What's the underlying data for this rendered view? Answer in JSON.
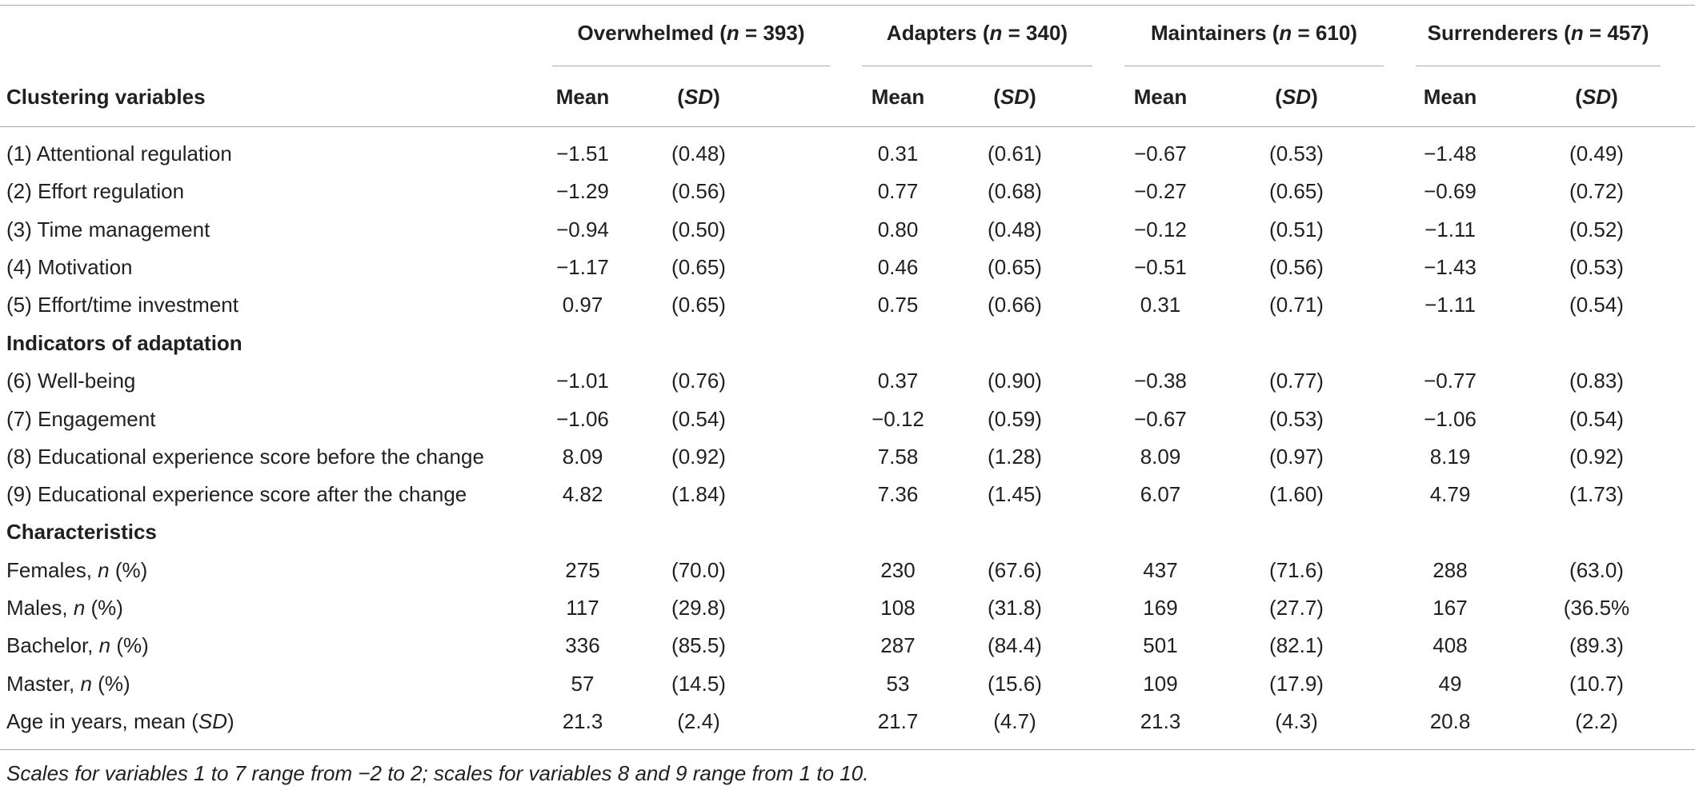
{
  "groups": [
    {
      "name": "Overwhelmed",
      "n_label": "(n = 393)",
      "n": "393"
    },
    {
      "name": "Adapters",
      "n_label": "(n = 340)",
      "n": "340"
    },
    {
      "name": "Maintainers",
      "n_label": "(n = 610)",
      "n": "610"
    },
    {
      "name": "Surrenderers",
      "n_label": "(n = 457)",
      "n": "457"
    }
  ],
  "header": {
    "row_label": "Clustering variables",
    "mean": "Mean",
    "sd": "(SD)"
  },
  "sections": {
    "indicators": "Indicators of adaptation",
    "characteristics": "Characteristics"
  },
  "rows": [
    {
      "label": "(1) Attentional regulation",
      "vals": [
        "−1.51",
        "(0.48)",
        "0.31",
        "(0.61)",
        "−0.67",
        "(0.53)",
        "−1.48",
        "(0.49)"
      ]
    },
    {
      "label": "(2) Effort regulation",
      "vals": [
        "−1.29",
        "(0.56)",
        "0.77",
        "(0.68)",
        "−0.27",
        "(0.65)",
        "−0.69",
        "(0.72)"
      ]
    },
    {
      "label": "(3) Time management",
      "vals": [
        "−0.94",
        "(0.50)",
        "0.80",
        "(0.48)",
        "−0.12",
        "(0.51)",
        "−1.11",
        "(0.52)"
      ]
    },
    {
      "label": "(4) Motivation",
      "vals": [
        "−1.17",
        "(0.65)",
        "0.46",
        "(0.65)",
        "−0.51",
        "(0.56)",
        "−1.43",
        "(0.53)"
      ]
    },
    {
      "label": "(5) Effort/time investment",
      "vals": [
        "0.97",
        "(0.65)",
        "0.75",
        "(0.66)",
        "0.31",
        "(0.71)",
        "−1.11",
        "(0.54)"
      ]
    },
    {
      "label": "(6) Well-being",
      "vals": [
        "−1.01",
        "(0.76)",
        "0.37",
        "(0.90)",
        "−0.38",
        "(0.77)",
        "−0.77",
        "(0.83)"
      ]
    },
    {
      "label": "(7) Engagement",
      "vals": [
        "−1.06",
        "(0.54)",
        "−0.12",
        "(0.59)",
        "−0.67",
        "(0.53)",
        "−1.06",
        "(0.54)"
      ]
    },
    {
      "label": "(8) Educational experience score before the change",
      "vals": [
        "8.09",
        "(0.92)",
        "7.58",
        "(1.28)",
        "8.09",
        "(0.97)",
        "8.19",
        "(0.92)"
      ]
    },
    {
      "label": "(9) Educational experience score after the change",
      "vals": [
        "4.82",
        "(1.84)",
        "7.36",
        "(1.45)",
        "6.07",
        "(1.60)",
        "4.79",
        "(1.73)"
      ]
    },
    {
      "label_pre": "Females, ",
      "label_it": "n",
      "label_post": " (%)",
      "vals": [
        "275",
        "(70.0)",
        "230",
        "(67.6)",
        "437",
        "(71.6)",
        "288",
        "(63.0)"
      ]
    },
    {
      "label_pre": "Males, ",
      "label_it": "n",
      "label_post": " (%)",
      "vals": [
        "117",
        "(29.8)",
        "108",
        "(31.8)",
        "169",
        "(27.7)",
        "167",
        "(36.5%"
      ]
    },
    {
      "label_pre": "Bachelor, ",
      "label_it": "n",
      "label_post": " (%)",
      "vals": [
        "336",
        "(85.5)",
        "287",
        "(84.4)",
        "501",
        "(82.1)",
        "408",
        "(89.3)"
      ]
    },
    {
      "label_pre": "Master, ",
      "label_it": "n",
      "label_post": " (%)",
      "vals": [
        "57",
        "(14.5)",
        "53",
        "(15.6)",
        "109",
        "(17.9)",
        "49",
        "(10.7)"
      ]
    },
    {
      "label_pre": "Age in years, mean (",
      "label_it": "SD",
      "label_post": ")",
      "vals": [
        "21.3",
        "(2.4)",
        "21.7",
        "(4.7)",
        "21.3",
        "(4.3)",
        "20.8",
        "(2.2)"
      ]
    }
  ],
  "note": "Scales for variables 1 to 7 range from −2 to 2; scales for variables 8 and 9 range from 1 to 10."
}
